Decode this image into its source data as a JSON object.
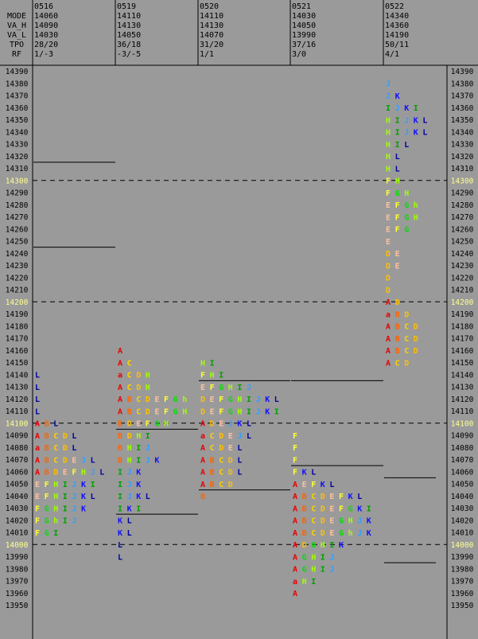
{
  "header": {
    "row_labels": [
      "MODE",
      "VA_H",
      "VA_L",
      "TPO",
      "RF"
    ],
    "columns": [
      {
        "date": "0516",
        "mode": "14060",
        "va_h": "14090",
        "va_l": "14030",
        "tpo": "28/20",
        "rf": "1/-3"
      },
      {
        "date": "0519",
        "mode": "14110",
        "va_h": "14130",
        "va_l": "14050",
        "tpo": "36/18",
        "rf": "-3/-5"
      },
      {
        "date": "0520",
        "mode": "14110",
        "va_h": "14130",
        "va_l": "14070",
        "tpo": "31/20",
        "rf": "1/1"
      },
      {
        "date": "0521",
        "mode": "14030",
        "va_h": "14050",
        "va_l": "13990",
        "tpo": "37/16",
        "rf": "3/0"
      },
      {
        "date": "0522",
        "mode": "14340",
        "va_h": "14360",
        "va_l": "14190",
        "tpo": "50/11",
        "rf": "4/1"
      }
    ]
  },
  "chart_data": {
    "type": "market_profile",
    "price_range": [
      13950,
      14390
    ],
    "price_step": 10,
    "dashed_levels": [
      14300,
      14200,
      14100,
      14000
    ],
    "highlight_levels": [
      14300,
      14200,
      14100,
      14000
    ],
    "letter_colors": {
      "A": "#e80000",
      "a": "#e80000",
      "B": "#ff6400",
      "C": "#ffd000",
      "D": "#ffc000",
      "E": "#ffc0a0",
      "F": "#ffff30",
      "G": "#00e000",
      "H": "#a0ff00",
      "h": "#a0ff00",
      "I": "#00a000",
      "J": "#30a0ff",
      "K": "#1010ff",
      "L": "#0000a0"
    },
    "profiles": [
      {
        "date": "0516",
        "rows": [
          {
            "price": 14140,
            "letters": "L"
          },
          {
            "price": 14130,
            "letters": "L"
          },
          {
            "price": 14120,
            "letters": "L"
          },
          {
            "price": 14110,
            "letters": "L"
          },
          {
            "price": 14100,
            "letters": "ABL"
          },
          {
            "price": 14090,
            "letters": "ABCDL"
          },
          {
            "price": 14080,
            "letters": "aBCDL"
          },
          {
            "price": 14070,
            "letters": "ABCDEJL"
          },
          {
            "price": 14060,
            "letters": "ABDEFHJL"
          },
          {
            "price": 14050,
            "letters": "EFHIJKI"
          },
          {
            "price": 14040,
            "letters": "EFHIJKL"
          },
          {
            "price": 14030,
            "letters": "FGHIJK"
          },
          {
            "price": 14020,
            "letters": "FGhIJ"
          },
          {
            "price": 14010,
            "letters": "FGI"
          }
        ]
      },
      {
        "date": "0519",
        "rows": [
          {
            "price": 14160,
            "letters": "A"
          },
          {
            "price": 14150,
            "letters": "AC"
          },
          {
            "price": 14140,
            "letters": "aCDH"
          },
          {
            "price": 14130,
            "letters": "ACDH"
          },
          {
            "price": 14120,
            "letters": "ABCDEFGh"
          },
          {
            "price": 14110,
            "letters": "ABCDEFGH"
          },
          {
            "price": 14100,
            "letters": "BDEFGH"
          },
          {
            "price": 14090,
            "letters": "BDHI"
          },
          {
            "price": 14080,
            "letters": "BHIJ"
          },
          {
            "price": 14070,
            "letters": "BHIJK"
          },
          {
            "price": 14060,
            "letters": "IJK"
          },
          {
            "price": 14050,
            "letters": "IJK"
          },
          {
            "price": 14040,
            "letters": "IJKL"
          },
          {
            "price": 14030,
            "letters": "IKI"
          },
          {
            "price": 14020,
            "letters": "KL"
          },
          {
            "price": 14010,
            "letters": "KL"
          },
          {
            "price": 14000,
            "letters": "L"
          },
          {
            "price": 13990,
            "letters": "L"
          }
        ]
      },
      {
        "date": "0520",
        "rows": [
          {
            "price": 14150,
            "letters": "HI"
          },
          {
            "price": 14140,
            "letters": "FHI"
          },
          {
            "price": 14130,
            "letters": "EFGHIJ"
          },
          {
            "price": 14120,
            "letters": "DEFGHIJKL"
          },
          {
            "price": 14110,
            "letters": "DEFGHIJKI"
          },
          {
            "price": 14100,
            "letters": "ADEJKL"
          },
          {
            "price": 14090,
            "letters": "aCDEJL"
          },
          {
            "price": 14080,
            "letters": "ACDEL"
          },
          {
            "price": 14070,
            "letters": "ABCDL"
          },
          {
            "price": 14060,
            "letters": "ABCDL"
          },
          {
            "price": 14050,
            "letters": "ABCD"
          },
          {
            "price": 14040,
            "letters": "B"
          }
        ]
      },
      {
        "date": "0521",
        "rows": [
          {
            "price": 14090,
            "letters": "F"
          },
          {
            "price": 14080,
            "letters": "F"
          },
          {
            "price": 14070,
            "letters": "F"
          },
          {
            "price": 14060,
            "letters": "FKL"
          },
          {
            "price": 14050,
            "letters": "AEFKL"
          },
          {
            "price": 14040,
            "letters": "ABCDEFKL"
          },
          {
            "price": 14030,
            "letters": "ABCDEFGKI"
          },
          {
            "price": 14020,
            "letters": "ABCDEGHJK"
          },
          {
            "price": 14010,
            "letters": "ABCDEGhJK"
          },
          {
            "price": 14000,
            "letters": "ADGHIK"
          },
          {
            "price": 13990,
            "letters": "AGHIJ"
          },
          {
            "price": 13980,
            "letters": "AGHIJ"
          },
          {
            "price": 13970,
            "letters": "aHI"
          },
          {
            "price": 13960,
            "letters": "A"
          }
        ]
      },
      {
        "date": "0522",
        "rows": [
          {
            "price": 14380,
            "letters": "J"
          },
          {
            "price": 14370,
            "letters": "JK"
          },
          {
            "price": 14360,
            "letters": "IJKI"
          },
          {
            "price": 14350,
            "letters": "HIJKL"
          },
          {
            "price": 14340,
            "letters": "HIJKL"
          },
          {
            "price": 14330,
            "letters": "HIL"
          },
          {
            "price": 14320,
            "letters": "HL"
          },
          {
            "price": 14310,
            "letters": "HL"
          },
          {
            "price": 14300,
            "letters": "FH"
          },
          {
            "price": 14290,
            "letters": "FGH"
          },
          {
            "price": 14280,
            "letters": "EFGh"
          },
          {
            "price": 14270,
            "letters": "EFGH"
          },
          {
            "price": 14260,
            "letters": "EFG"
          },
          {
            "price": 14250,
            "letters": "E"
          },
          {
            "price": 14240,
            "letters": "DE"
          },
          {
            "price": 14230,
            "letters": "DE"
          },
          {
            "price": 14220,
            "letters": "D"
          },
          {
            "price": 14210,
            "letters": "D"
          },
          {
            "price": 14200,
            "letters": "AD"
          },
          {
            "price": 14190,
            "letters": "aBD"
          },
          {
            "price": 14180,
            "letters": "ABCD"
          },
          {
            "price": 14170,
            "letters": "ABCD"
          },
          {
            "price": 14160,
            "letters": "ABCD"
          },
          {
            "price": 14150,
            "letters": "ACD"
          }
        ]
      }
    ],
    "reference_lines": [
      {
        "column": 0,
        "price": 14315
      },
      {
        "column": 0,
        "price": 14245
      },
      {
        "column": 1,
        "price": 14095
      },
      {
        "column": 1,
        "price": 14025
      },
      {
        "column": 2,
        "price": 14135
      },
      {
        "column": 2,
        "price": 14045
      },
      {
        "column": 3,
        "price": 14135
      },
      {
        "column": 3,
        "price": 14065
      },
      {
        "column": 4,
        "price": 14055
      },
      {
        "column": 4,
        "price": 13985
      }
    ]
  }
}
